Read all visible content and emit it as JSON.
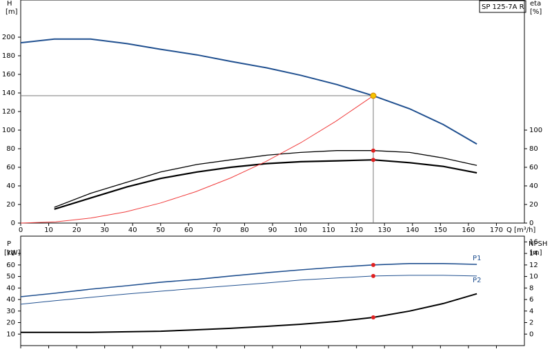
{
  "chart_data": [
    {
      "type": "line",
      "legend_box": "SP 125-7A R",
      "ylabel": "H",
      "yunit": "[m]",
      "y2label": "eta",
      "y2unit": "[%]",
      "xlabel": "Q [m³/h]",
      "xlim": [
        0,
        180
      ],
      "xticks": [
        0,
        10,
        20,
        30,
        40,
        50,
        60,
        70,
        80,
        90,
        100,
        110,
        120,
        130,
        140,
        150,
        160,
        170
      ],
      "ylim": [
        0,
        240
      ],
      "yticks": [
        0,
        20,
        40,
        60,
        80,
        100,
        120,
        140,
        160,
        180,
        200
      ],
      "y2lim": [
        0,
        240
      ],
      "y2ticks": [
        0,
        20,
        40,
        60,
        80,
        100
      ],
      "series": [
        {
          "color": "#1f4f8f",
          "width": 2,
          "x": [
            0,
            12,
            25,
            38,
            50,
            63,
            75,
            88,
            100,
            113,
            126,
            139,
            151,
            163
          ],
          "values": [
            194,
            198,
            198,
            193,
            187,
            181,
            174,
            167,
            159,
            149,
            137,
            123,
            106,
            85
          ]
        },
        {
          "color": "#000000",
          "width": 1.3,
          "axis": "y2",
          "x": [
            12,
            25,
            38,
            50,
            63,
            75,
            88,
            100,
            113,
            126,
            139,
            151,
            163
          ],
          "values": [
            17,
            32,
            44,
            55,
            63,
            68,
            73,
            76,
            78,
            78,
            76,
            70,
            62
          ]
        },
        {
          "color": "#000000",
          "width": 2.2,
          "axis": "y2",
          "x": [
            12,
            25,
            38,
            50,
            63,
            75,
            88,
            100,
            113,
            126,
            139,
            151,
            163
          ],
          "values": [
            15,
            27,
            39,
            48,
            55,
            60,
            64,
            66,
            67,
            68,
            65,
            61,
            54
          ]
        },
        {
          "color": "#f03a3a",
          "width": 1,
          "x": [
            0,
            12.5,
            25,
            37.5,
            50,
            62.5,
            75,
            87.5,
            100,
            112.5,
            126
          ],
          "values": [
            0,
            1.3,
            5.4,
            12.1,
            21.6,
            33.7,
            48.5,
            66.1,
            86.3,
            109.3,
            137
          ]
        }
      ],
      "duty": {
        "x": 126,
        "y": 137,
        "color": "#f5c400"
      },
      "points": [
        {
          "x": 126,
          "y": 78,
          "axis": "y2",
          "color": "#e02020"
        },
        {
          "x": 126,
          "y": 68,
          "axis": "y2",
          "color": "#e02020"
        }
      ]
    },
    {
      "type": "line",
      "ylabel": "P",
      "yunit": "[kW]",
      "y2label": "NPSH",
      "y2unit": "[m]",
      "xlim": [
        0,
        180
      ],
      "ylim": [
        -10,
        85
      ],
      "yticks": [
        40,
        50,
        60,
        70
      ],
      "ylim_lower": [
        0,
        95
      ],
      "yticks_lower": [
        10,
        20,
        30,
        40
      ],
      "y2lim": [
        -2,
        17
      ],
      "y2ticks": [
        0,
        2,
        4,
        6,
        8,
        10,
        12,
        14,
        16
      ],
      "series": [
        {
          "name": "P1",
          "color": "#1f4f8f",
          "width": 1.6,
          "x": [
            0,
            12,
            25,
            38,
            50,
            63,
            75,
            88,
            100,
            113,
            126,
            139,
            151,
            163
          ],
          "values": [
            32.4,
            35.4,
            39,
            42,
            45,
            47.5,
            50.4,
            53.3,
            55.7,
            58.1,
            60,
            61.2,
            61.2,
            60.5
          ]
        },
        {
          "name": "P2",
          "color": "#1f4f8f",
          "width": 1,
          "x": [
            0,
            12,
            25,
            38,
            50,
            63,
            75,
            88,
            100,
            113,
            126,
            139,
            151,
            163
          ],
          "values": [
            25.9,
            28.9,
            31.9,
            34.8,
            37.2,
            39.7,
            42,
            44.4,
            46.9,
            48.7,
            50.4,
            51,
            51,
            50.4
          ]
        },
        {
          "color": "#000000",
          "width": 2,
          "axis": "y2",
          "x": [
            0,
            12,
            25,
            38,
            50,
            63,
            75,
            88,
            100,
            113,
            126,
            139,
            151,
            163
          ],
          "values": [
            0.3,
            0.3,
            0.3,
            0.4,
            0.5,
            0.75,
            1.0,
            1.35,
            1.7,
            2.2,
            2.9,
            4.0,
            5.3,
            7.0
          ]
        }
      ],
      "points": [
        {
          "x": 126,
          "y": 60,
          "color": "#e02020"
        },
        {
          "x": 126,
          "y": 50.4,
          "color": "#e02020"
        },
        {
          "x": 126,
          "y": 2.9,
          "axis": "y2",
          "color": "#e02020"
        }
      ]
    }
  ]
}
